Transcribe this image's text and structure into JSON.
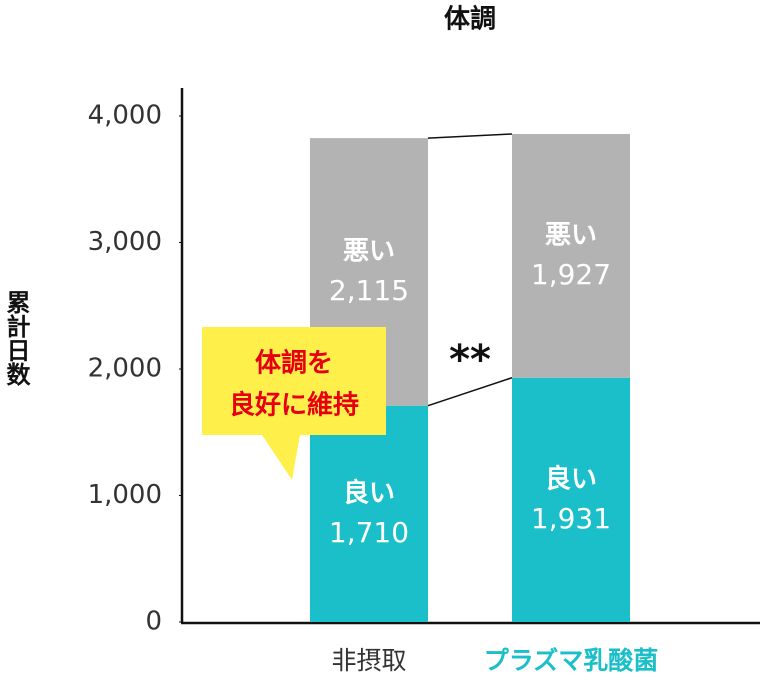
{
  "chart_data": {
    "type": "stacked_bar",
    "title": "体調",
    "y_label": "累計日数",
    "categories": [
      "非摂取",
      "プラズマ乳酸菌"
    ],
    "category_colors": [
      "#333333",
      "#1bbfc9"
    ],
    "series": [
      {
        "name": "良い",
        "color": "#1bbfc9",
        "values": [
          1710,
          1931
        ],
        "value_labels": [
          "1,710",
          "1,931"
        ]
      },
      {
        "name": "悪い",
        "color": "#b3b3b3",
        "values": [
          2115,
          1927
        ],
        "value_labels": [
          "2,115",
          "1,927"
        ]
      }
    ],
    "ylim": [
      0,
      4000
    ],
    "yticks": [
      0,
      {
        "value": 1000,
        "label": "1,000"
      },
      {
        "value": 2000,
        "label": "2,000"
      },
      {
        "value": 3000,
        "label": "3,000"
      },
      {
        "value": 4000,
        "label": "4,000"
      }
    ],
    "significance": "**",
    "callout": [
      "体調を",
      "良好に維持"
    ]
  }
}
